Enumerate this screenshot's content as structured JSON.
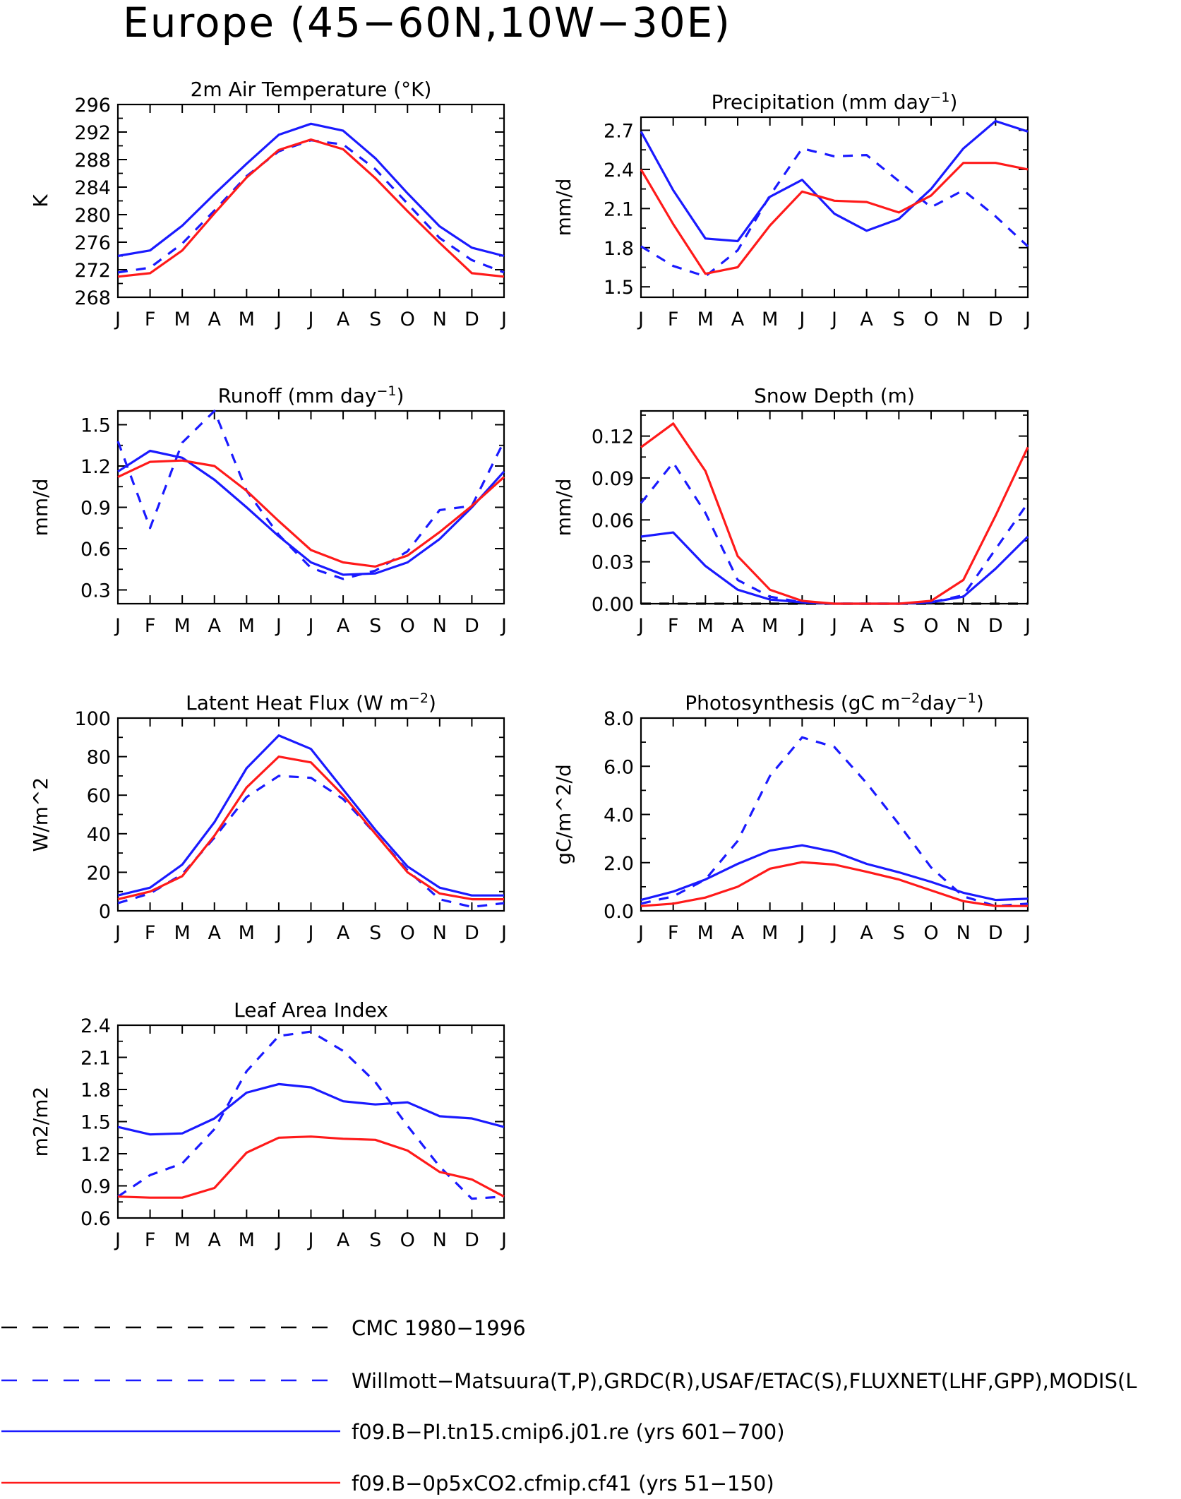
{
  "title": "Europe (45−60N,10W−30E)",
  "colors": {
    "obs_cmc": "#000000",
    "obs_other": "#1a1aff",
    "model_pi": "#1a1aff",
    "model_co2": "#ff1a1a"
  },
  "legend": [
    {
      "label": "CMC 1980−1996",
      "color": "#000000",
      "dash": true
    },
    {
      "label": "Willmott−Matsuura(T,P),GRDC(R),USAF/ETAC(S),FLUXNET(LHF,GPP),MODIS(L",
      "color": "#1a1aff",
      "dash": true
    },
    {
      "label": "f09.B−PI.tn15.cmip6.j01.re (yrs 601−700)",
      "color": "#1a1aff",
      "dash": false
    },
    {
      "label": "f09.B−0p5xCO2.cfmip.cf41 (yrs 51−150)",
      "color": "#ff1a1a",
      "dash": false
    }
  ],
  "chart_data": [
    {
      "type": "line",
      "title": "2m Air Temperature (°K)",
      "ylabel": "K",
      "categories": [
        "J",
        "F",
        "M",
        "A",
        "M",
        "J",
        "J",
        "A",
        "S",
        "O",
        "N",
        "D",
        "J"
      ],
      "ylim": [
        268,
        296
      ],
      "yticks": [
        "296",
        "292",
        "288",
        "284",
        "280",
        "276",
        "272",
        "268"
      ],
      "ytick_values": [
        296,
        292,
        288,
        284,
        280,
        276,
        272,
        268
      ],
      "series": [
        {
          "style": "obs_dashed",
          "values": [
            271.6,
            272.3,
            275.8,
            280.6,
            285.6,
            289.2,
            290.8,
            290.2,
            286.6,
            281.6,
            276.6,
            273.4,
            271.6
          ]
        },
        {
          "style": "model_pi",
          "values": [
            274.0,
            274.8,
            278.4,
            283.0,
            287.4,
            291.6,
            293.2,
            292.2,
            288.2,
            283.1,
            278.3,
            275.2,
            274.0
          ]
        },
        {
          "style": "model_co2",
          "values": [
            271.0,
            271.5,
            274.8,
            280.2,
            285.4,
            289.4,
            290.9,
            289.5,
            285.3,
            280.5,
            275.9,
            271.5,
            271.0
          ]
        }
      ]
    },
    {
      "type": "line",
      "title": "Precipitation (mm day",
      "title_sup": "−1",
      "title_end": ")",
      "ylabel": "mm/d",
      "categories": [
        "J",
        "F",
        "M",
        "A",
        "M",
        "J",
        "J",
        "A",
        "S",
        "O",
        "N",
        "D",
        "J"
      ],
      "ylim": [
        1.42,
        2.8
      ],
      "yticks": [
        "2.7",
        "2.4",
        "2.1",
        "1.8",
        "1.5"
      ],
      "ytick_values": [
        2.7,
        2.4,
        2.1,
        1.8,
        1.5
      ],
      "series": [
        {
          "style": "obs_dashed",
          "values": [
            1.81,
            1.66,
            1.58,
            1.78,
            2.2,
            2.56,
            2.5,
            2.51,
            2.31,
            2.11,
            2.24,
            2.04,
            1.81
          ]
        },
        {
          "style": "model_pi",
          "values": [
            2.69,
            2.24,
            1.87,
            1.85,
            2.19,
            2.32,
            2.06,
            1.93,
            2.02,
            2.25,
            2.56,
            2.77,
            2.69
          ]
        },
        {
          "style": "model_co2",
          "values": [
            2.4,
            1.98,
            1.6,
            1.65,
            1.97,
            2.23,
            2.16,
            2.15,
            2.07,
            2.2,
            2.45,
            2.45,
            2.4
          ]
        }
      ]
    },
    {
      "type": "line",
      "title": "Runoff (mm day",
      "title_sup": "−1",
      "title_end": ")",
      "ylabel": "mm/d",
      "categories": [
        "J",
        "F",
        "M",
        "A",
        "M",
        "J",
        "J",
        "A",
        "S",
        "O",
        "N",
        "D",
        "J"
      ],
      "ylim": [
        0.2,
        1.6
      ],
      "yticks": [
        "1.5",
        "1.2",
        "0.9",
        "0.6",
        "0.3"
      ],
      "ytick_values": [
        1.5,
        1.2,
        0.9,
        0.6,
        0.3
      ],
      "series": [
        {
          "style": "obs_dashed",
          "values": [
            1.38,
            0.75,
            1.37,
            1.6,
            1.02,
            0.7,
            0.46,
            0.38,
            0.44,
            0.58,
            0.88,
            0.91,
            1.38
          ]
        },
        {
          "style": "model_pi",
          "values": [
            1.16,
            1.31,
            1.26,
            1.1,
            0.9,
            0.69,
            0.5,
            0.41,
            0.42,
            0.5,
            0.67,
            0.9,
            1.16
          ]
        },
        {
          "style": "model_co2",
          "values": [
            1.12,
            1.23,
            1.24,
            1.2,
            1.02,
            0.8,
            0.59,
            0.5,
            0.47,
            0.55,
            0.72,
            0.91,
            1.12
          ]
        }
      ]
    },
    {
      "type": "line",
      "title": "Snow Depth (m)",
      "ylabel": "mm/d",
      "categories": [
        "J",
        "F",
        "M",
        "A",
        "M",
        "J",
        "J",
        "A",
        "S",
        "O",
        "N",
        "D",
        "J"
      ],
      "ylim": [
        0,
        0.138
      ],
      "yticks": [
        "0.12",
        "0.09",
        "0.06",
        "0.03",
        "0.00"
      ],
      "ytick_values": [
        0.12,
        0.09,
        0.06,
        0.03,
        0.0
      ],
      "series": [
        {
          "style": "obs_cmc",
          "values": [
            0.0,
            0.0,
            0.0,
            0.0,
            0.0,
            0.0,
            0.0,
            0.0,
            0.0,
            0.0,
            0.0,
            0.0,
            0.0
          ]
        },
        {
          "style": "obs_dashed",
          "values": [
            0.072,
            0.101,
            0.065,
            0.017,
            0.005,
            0.001,
            0.0,
            0.0,
            0.0,
            0.001,
            0.006,
            0.039,
            0.072
          ]
        },
        {
          "style": "model_pi",
          "values": [
            0.048,
            0.051,
            0.027,
            0.01,
            0.003,
            0.001,
            0.0,
            0.0,
            0.0,
            0.001,
            0.005,
            0.025,
            0.048
          ]
        },
        {
          "style": "model_co2",
          "values": [
            0.112,
            0.129,
            0.095,
            0.034,
            0.01,
            0.002,
            0.0,
            0.0,
            0.0,
            0.002,
            0.017,
            0.063,
            0.112
          ]
        }
      ]
    },
    {
      "type": "line",
      "title": "Latent Heat Flux (W m",
      "title_sup": "−2",
      "title_end": ")",
      "ylabel": "W/m^2",
      "categories": [
        "J",
        "F",
        "M",
        "A",
        "M",
        "J",
        "J",
        "A",
        "S",
        "O",
        "N",
        "D",
        "J"
      ],
      "ylim": [
        0,
        100
      ],
      "yticks": [
        "100",
        "80",
        "60",
        "40",
        "20",
        "0"
      ],
      "ytick_values": [
        100,
        80,
        60,
        40,
        20,
        0
      ],
      "series": [
        {
          "style": "obs_dashed",
          "values": [
            4,
            9,
            19,
            38,
            59,
            70,
            69,
            58,
            40,
            21,
            6,
            2,
            4
          ]
        },
        {
          "style": "model_pi",
          "values": [
            8,
            12,
            24,
            46,
            74,
            91,
            84,
            63,
            42,
            23,
            12,
            8,
            8
          ]
        },
        {
          "style": "model_co2",
          "values": [
            6,
            10,
            18,
            39,
            64,
            80,
            77,
            60,
            40,
            20,
            9,
            6,
            6
          ]
        }
      ]
    },
    {
      "type": "line",
      "title": "Photosynthesis (gC m",
      "title_sup": "−2",
      "title_mid": "day",
      "title_sup2": "−1",
      "title_end": ")",
      "ylabel": "gC/m^2/d",
      "categories": [
        "J",
        "F",
        "M",
        "A",
        "M",
        "J",
        "J",
        "A",
        "S",
        "O",
        "N",
        "D",
        "J"
      ],
      "ylim": [
        0,
        8
      ],
      "yticks": [
        "8.0",
        "6.0",
        "4.0",
        "2.0",
        "0.0"
      ],
      "ytick_values": [
        8,
        6,
        4,
        2,
        0
      ],
      "series": [
        {
          "style": "obs_dashed",
          "values": [
            0.3,
            0.6,
            1.3,
            2.9,
            5.6,
            7.2,
            6.8,
            5.3,
            3.6,
            1.8,
            0.6,
            0.2,
            0.3
          ]
        },
        {
          "style": "model_pi",
          "values": [
            0.45,
            0.8,
            1.3,
            1.95,
            2.5,
            2.72,
            2.45,
            1.95,
            1.6,
            1.2,
            0.75,
            0.45,
            0.5
          ]
        },
        {
          "style": "model_co2",
          "values": [
            0.2,
            0.3,
            0.55,
            1.0,
            1.75,
            2.02,
            1.92,
            1.62,
            1.3,
            0.85,
            0.4,
            0.2,
            0.2
          ]
        }
      ]
    },
    {
      "type": "line",
      "title": "Leaf Area Index",
      "ylabel": "m2/m2",
      "categories": [
        "J",
        "F",
        "M",
        "A",
        "M",
        "J",
        "J",
        "A",
        "S",
        "O",
        "N",
        "D",
        "J"
      ],
      "ylim": [
        0.6,
        2.4
      ],
      "yticks": [
        "2.4",
        "2.1",
        "1.8",
        "1.5",
        "1.2",
        "0.9",
        "0.6"
      ],
      "ytick_values": [
        2.4,
        2.1,
        1.8,
        1.5,
        1.2,
        0.9,
        0.6
      ],
      "series": [
        {
          "style": "obs_dashed",
          "values": [
            0.8,
            1.0,
            1.11,
            1.43,
            1.97,
            2.3,
            2.34,
            2.16,
            1.87,
            1.46,
            1.08,
            0.78,
            0.8
          ]
        },
        {
          "style": "model_pi",
          "values": [
            1.45,
            1.38,
            1.39,
            1.53,
            1.77,
            1.85,
            1.82,
            1.69,
            1.66,
            1.68,
            1.55,
            1.53,
            1.45
          ]
        },
        {
          "style": "model_co2",
          "values": [
            0.8,
            0.79,
            0.79,
            0.88,
            1.21,
            1.35,
            1.36,
            1.34,
            1.33,
            1.23,
            1.03,
            0.96,
            0.8
          ]
        }
      ]
    }
  ]
}
